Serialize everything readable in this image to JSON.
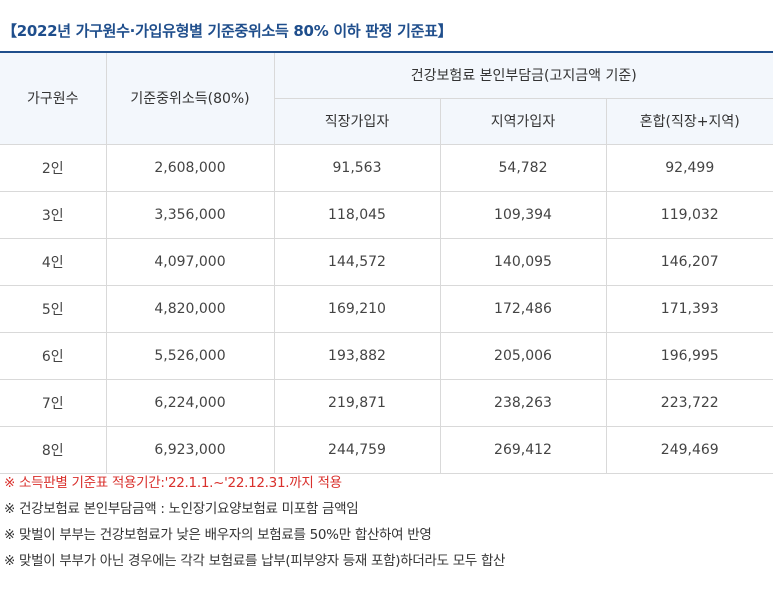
{
  "title": "【2022년 가구원수·가입유형별 기준중위소득 80% 이하 판정 기준표】",
  "headers": {
    "household": "가구원수",
    "income": "기준중위소득(80%)",
    "premium": "건강보험료 본인부담금(고지금액 기준)",
    "workplace": "직장가입자",
    "regional": "지역가입자",
    "mixed": "혼합(직장+지역)"
  },
  "rows": [
    {
      "household": "2인",
      "income": "2,608,000",
      "workplace": "91,563",
      "regional": "54,782",
      "mixed": "92,499"
    },
    {
      "household": "3인",
      "income": "3,356,000",
      "workplace": "118,045",
      "regional": "109,394",
      "mixed": "119,032"
    },
    {
      "household": "4인",
      "income": "4,097,000",
      "workplace": "144,572",
      "regional": "140,095",
      "mixed": "146,207"
    },
    {
      "household": "5인",
      "income": "4,820,000",
      "workplace": "169,210",
      "regional": "172,486",
      "mixed": "171,393"
    },
    {
      "household": "6인",
      "income": "5,526,000",
      "workplace": "193,882",
      "regional": "205,006",
      "mixed": "196,995"
    },
    {
      "household": "7인",
      "income": "6,224,000",
      "workplace": "219,871",
      "regional": "238,263",
      "mixed": "223,722"
    },
    {
      "household": "8인",
      "income": "6,923,000",
      "workplace": "244,759",
      "regional": "269,412",
      "mixed": "249,469"
    }
  ],
  "notes": [
    {
      "mark": "※",
      "text": "소득판별 기준표 적용기간:'22.1.1.~'22.12.31.까지 적용"
    },
    {
      "mark": "※",
      "text": "건강보험료 본인부담금액 : 노인장기요양보험료 미포함 금액임"
    },
    {
      "mark": "※",
      "text": "맞벌이 부부는 건강보험료가 낮은 배우자의 보험료를 50%만 합산하여 반영"
    },
    {
      "mark": "※",
      "text": "맞벌이 부부가 아닌 경우에는 각각 보험료를 납부(피부양자 등재 포함)하더라도 모두 합산"
    }
  ],
  "colors": {
    "title": "#1f4e8c",
    "header_bg": "#f3f7fc",
    "note_red": "#d9302c"
  }
}
